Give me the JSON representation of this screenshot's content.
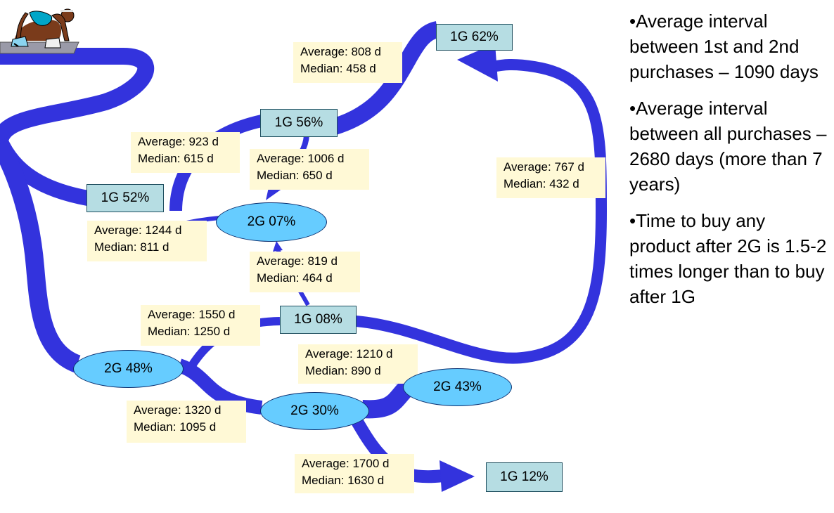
{
  "intervals": [
    {
      "average": "Average: 808 d",
      "median": "Median: 458 d"
    },
    {
      "average": "Average: 923 d",
      "median": "Median: 615 d"
    },
    {
      "average": "Average: 1006 d",
      "median": "Median: 650 d"
    },
    {
      "average": "Average: 767 d",
      "median": "Median: 432 d"
    },
    {
      "average": "Average: 1244 d",
      "median": "Median: 811 d"
    },
    {
      "average": "Average: 819 d",
      "median": "Median: 464 d"
    },
    {
      "average": "Average: 1550 d",
      "median": "Median: 1250 d"
    },
    {
      "average": "Average: 1210 d",
      "median": "Median: 890 d"
    },
    {
      "average": "Average: 1320 d",
      "median": "Median: 1095 d"
    },
    {
      "average": "Average: 1700 d",
      "median": "Median: 1630 d"
    }
  ],
  "nodes_1g": [
    "1G 62%",
    "1G 56%",
    "1G 52%",
    "1G 08%",
    "1G 12%"
  ],
  "nodes_2g": [
    "2G 07%",
    "2G 48%",
    "2G 30%",
    "2G 43%"
  ],
  "bullets": [
    "•Average interval between 1st and 2nd purchases – 1090 days",
    "•Average interval between all purchases – 2680 days (more than 7 years)",
    "•Time to buy any product after 2G is 1.5-2 times longer than to buy after 1G"
  ],
  "colors": {
    "path": "#3333dd",
    "note": "#fff9d6",
    "box_1g": "#b6dde3",
    "ellipse_2g": "#66ccff"
  },
  "icons": [
    "sprinter-icon"
  ]
}
